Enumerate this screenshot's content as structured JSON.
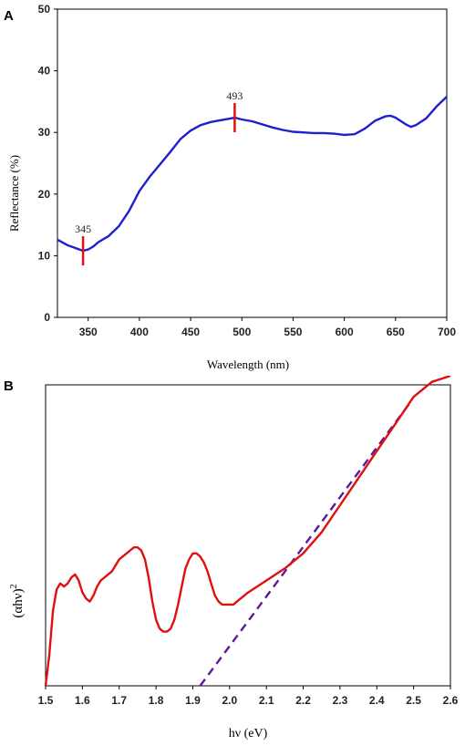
{
  "chart_data": [
    {
      "type": "line",
      "panel": "A",
      "xlabel": "Wavelength (nm)",
      "ylabel": "Reflectance (%)",
      "xlim": [
        320,
        700
      ],
      "ylim": [
        0,
        50
      ],
      "xticks": [
        350,
        400,
        450,
        500,
        550,
        600,
        650,
        700
      ],
      "yticks": [
        0,
        10,
        20,
        30,
        40,
        50
      ],
      "grid": false,
      "colors": {
        "line": "#1f1fd0",
        "marker": "#e01010"
      },
      "series": [
        {
          "x": [
            320,
            330,
            340,
            345,
            350,
            355,
            360,
            370,
            380,
            390,
            400,
            410,
            420,
            430,
            440,
            450,
            460,
            470,
            480,
            490,
            493,
            500,
            510,
            520,
            530,
            540,
            550,
            560,
            570,
            580,
            590,
            600,
            610,
            620,
            630,
            640,
            645,
            650,
            660,
            665,
            670,
            680,
            690,
            700
          ],
          "y": [
            12.6,
            11.7,
            11.1,
            10.8,
            11.0,
            11.5,
            12.2,
            13.2,
            14.8,
            17.3,
            20.5,
            22.8,
            24.8,
            26.8,
            28.9,
            30.3,
            31.2,
            31.7,
            32.0,
            32.3,
            32.4,
            32.1,
            31.8,
            31.3,
            30.8,
            30.4,
            30.1,
            30.0,
            29.9,
            29.9,
            29.8,
            29.6,
            29.7,
            30.6,
            31.9,
            32.6,
            32.7,
            32.4,
            31.3,
            30.9,
            31.2,
            32.3,
            34.2,
            35.8
          ]
        }
      ],
      "annotations": [
        {
          "label": "345",
          "x": 345,
          "y": 10.8
        },
        {
          "label": "493",
          "x": 493,
          "y": 32.4
        }
      ]
    },
    {
      "type": "line",
      "panel": "B",
      "xlabel": "hν (eV)",
      "ylabel_main": "(αhν)",
      "ylabel_sup": "2",
      "xlim": [
        1.5,
        2.6
      ],
      "xticks": [
        "1.5",
        "1.6",
        "1.7",
        "1.8",
        "1.9",
        "2.0",
        "2.1",
        "2.2",
        "2.3",
        "2.4",
        "2.5",
        "2.6"
      ],
      "ylim": [
        0,
        100
      ],
      "grid": false,
      "colors": {
        "line": "#e01010",
        "tangent": "#5a1a9a"
      },
      "series": [
        {
          "x": [
            1.5,
            1.51,
            1.52,
            1.53,
            1.54,
            1.55,
            1.56,
            1.57,
            1.58,
            1.59,
            1.6,
            1.61,
            1.62,
            1.63,
            1.64,
            1.65,
            1.66,
            1.67,
            1.68,
            1.69,
            1.7,
            1.71,
            1.72,
            1.73,
            1.74,
            1.75,
            1.76,
            1.77,
            1.78,
            1.79,
            1.8,
            1.81,
            1.82,
            1.83,
            1.84,
            1.85,
            1.86,
            1.87,
            1.88,
            1.89,
            1.9,
            1.91,
            1.92,
            1.93,
            1.94,
            1.95,
            1.96,
            1.97,
            1.98,
            1.99,
            2.0,
            2.01,
            2.02,
            2.03,
            2.05,
            2.1,
            2.15,
            2.2,
            2.25,
            2.3,
            2.35,
            2.4,
            2.45,
            2.5,
            2.55,
            2.6
          ],
          "y": [
            0,
            10,
            25,
            32,
            34,
            33,
            34,
            36,
            37,
            35,
            31,
            29,
            28,
            30,
            33,
            35,
            36,
            37,
            38,
            40,
            42,
            43,
            44,
            45,
            46,
            46,
            45,
            42,
            36,
            28,
            22,
            19,
            18,
            18,
            19,
            22,
            27,
            33,
            39,
            42,
            44,
            44,
            43,
            41,
            38,
            34,
            30,
            28,
            27,
            27,
            27,
            27,
            28,
            29,
            31,
            35,
            39,
            44,
            51,
            60,
            69,
            78,
            87,
            96,
            101,
            103
          ]
        }
      ],
      "tangent": {
        "x": [
          1.92,
          2.49
        ],
        "y": [
          0,
          94
        ]
      }
    }
  ]
}
